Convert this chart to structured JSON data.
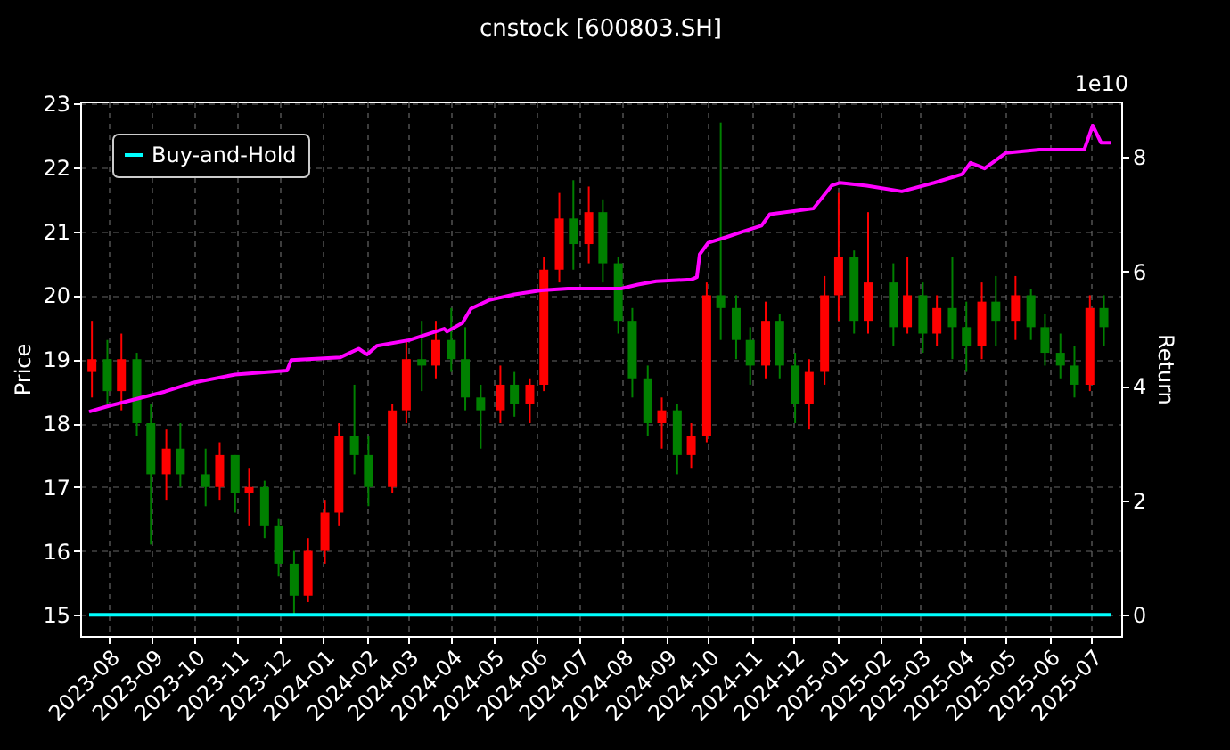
{
  "chart_data": {
    "type": "candlestick",
    "title": "cnstock [600803.SH]",
    "ylabel": "Price",
    "y2label": "Return",
    "annotations": [
      "1e10"
    ],
    "x": [
      "2023-07-20",
      "2023-07-31",
      "2023-08-10",
      "2023-08-21",
      "2023-08-31",
      "2023-09-11",
      "2023-09-21",
      "2023-10-09",
      "2023-10-19",
      "2023-10-30",
      "2023-11-09",
      "2023-11-20",
      "2023-11-30",
      "2023-12-11",
      "2023-12-21",
      "2024-01-02",
      "2024-01-12",
      "2024-01-23",
      "2024-02-02",
      "2024-02-19",
      "2024-02-29",
      "2024-03-11",
      "2024-03-21",
      "2024-04-01",
      "2024-04-11",
      "2024-04-22",
      "2024-05-06",
      "2024-05-16",
      "2024-05-27",
      "2024-06-06",
      "2024-06-17",
      "2024-06-27",
      "2024-07-08",
      "2024-07-18",
      "2024-07-29",
      "2024-08-08",
      "2024-08-19",
      "2024-08-29",
      "2024-09-09",
      "2024-09-19",
      "2024-09-30",
      "2024-10-10",
      "2024-10-21",
      "2024-10-31",
      "2024-11-11",
      "2024-11-21",
      "2024-12-02",
      "2024-12-12",
      "2024-12-23",
      "2025-01-02",
      "2025-01-13",
      "2025-01-23",
      "2025-02-10",
      "2025-02-20",
      "2025-03-03",
      "2025-03-13",
      "2025-03-24",
      "2025-04-03",
      "2025-04-14",
      "2025-04-24",
      "2025-05-08",
      "2025-05-19",
      "2025-05-29",
      "2025-06-09",
      "2025-06-19",
      "2025-06-30",
      "2025-07-10"
    ],
    "ohlc": [
      [
        18.8,
        19.6,
        18.4,
        19.0
      ],
      [
        19.0,
        19.3,
        18.3,
        18.5
      ],
      [
        18.5,
        19.4,
        18.2,
        19.0
      ],
      [
        19.0,
        19.1,
        17.8,
        18.0
      ],
      [
        18.0,
        18.3,
        16.1,
        17.2
      ],
      [
        17.2,
        17.9,
        16.8,
        17.6
      ],
      [
        17.6,
        18.0,
        17.0,
        17.2
      ],
      [
        17.2,
        17.6,
        16.7,
        17.0
      ],
      [
        17.0,
        17.7,
        16.8,
        17.5
      ],
      [
        17.5,
        17.5,
        16.6,
        16.9
      ],
      [
        16.9,
        17.3,
        16.4,
        17.0
      ],
      [
        17.0,
        17.1,
        16.2,
        16.4
      ],
      [
        16.4,
        16.5,
        15.6,
        15.8
      ],
      [
        15.8,
        16.0,
        15.0,
        15.3
      ],
      [
        15.3,
        16.2,
        15.2,
        16.0
      ],
      [
        16.0,
        16.8,
        15.8,
        16.6
      ],
      [
        16.6,
        18.0,
        16.4,
        17.8
      ],
      [
        17.8,
        18.6,
        17.2,
        17.5
      ],
      [
        17.5,
        17.8,
        16.7,
        17.0
      ],
      [
        17.0,
        18.3,
        16.9,
        18.2
      ],
      [
        18.2,
        19.3,
        18.0,
        19.0
      ],
      [
        19.0,
        19.6,
        18.5,
        18.9
      ],
      [
        18.9,
        19.6,
        18.7,
        19.3
      ],
      [
        19.3,
        19.8,
        18.8,
        19.0
      ],
      [
        19.0,
        19.5,
        18.2,
        18.4
      ],
      [
        18.4,
        18.6,
        17.6,
        18.2
      ],
      [
        18.2,
        18.9,
        18.0,
        18.6
      ],
      [
        18.6,
        18.8,
        18.1,
        18.3
      ],
      [
        18.3,
        18.7,
        18.0,
        18.6
      ],
      [
        18.6,
        20.6,
        18.5,
        20.4
      ],
      [
        20.4,
        21.6,
        20.2,
        21.2
      ],
      [
        21.2,
        21.8,
        20.4,
        20.8
      ],
      [
        20.8,
        21.7,
        20.5,
        21.3
      ],
      [
        21.3,
        21.5,
        20.2,
        20.5
      ],
      [
        20.5,
        20.6,
        19.4,
        19.6
      ],
      [
        19.6,
        19.8,
        18.4,
        18.7
      ],
      [
        18.7,
        18.9,
        17.8,
        18.0
      ],
      [
        18.0,
        18.4,
        17.6,
        18.2
      ],
      [
        18.2,
        18.3,
        17.2,
        17.5
      ],
      [
        17.5,
        18.0,
        17.3,
        17.8
      ],
      [
        17.8,
        20.2,
        17.7,
        20.0
      ],
      [
        20.0,
        22.7,
        19.3,
        19.8
      ],
      [
        19.8,
        20.0,
        19.0,
        19.3
      ],
      [
        19.3,
        19.5,
        18.6,
        18.9
      ],
      [
        18.9,
        19.9,
        18.7,
        19.6
      ],
      [
        19.6,
        19.7,
        18.7,
        18.9
      ],
      [
        18.9,
        19.1,
        18.0,
        18.3
      ],
      [
        18.3,
        19.0,
        17.9,
        18.8
      ],
      [
        18.8,
        20.3,
        18.6,
        20.0
      ],
      [
        20.0,
        21.6,
        19.6,
        20.6
      ],
      [
        20.6,
        20.7,
        19.4,
        19.6
      ],
      [
        19.6,
        21.3,
        19.4,
        20.2
      ],
      [
        20.2,
        20.5,
        19.2,
        19.5
      ],
      [
        19.5,
        20.6,
        19.4,
        20.0
      ],
      [
        20.0,
        20.2,
        19.1,
        19.4
      ],
      [
        19.4,
        20.0,
        19.2,
        19.8
      ],
      [
        19.8,
        20.6,
        19.0,
        19.5
      ],
      [
        19.5,
        19.9,
        18.8,
        19.2
      ],
      [
        19.2,
        20.2,
        19.0,
        19.9
      ],
      [
        19.9,
        20.3,
        19.2,
        19.6
      ],
      [
        19.6,
        20.3,
        19.3,
        20.0
      ],
      [
        20.0,
        20.1,
        19.3,
        19.5
      ],
      [
        19.5,
        19.7,
        18.9,
        19.1
      ],
      [
        19.1,
        19.4,
        18.7,
        18.9
      ],
      [
        18.9,
        19.2,
        18.4,
        18.6
      ],
      [
        18.6,
        20.0,
        18.5,
        19.8
      ],
      [
        19.8,
        20.0,
        19.2,
        19.5
      ]
    ],
    "colors": [
      "#ff0000",
      "#008000",
      "#ff0000",
      "#008000",
      "#008000",
      "#ff0000",
      "#008000",
      "#008000",
      "#ff0000",
      "#008000",
      "#ff0000",
      "#008000",
      "#008000",
      "#008000",
      "#ff0000",
      "#ff0000",
      "#ff0000",
      "#008000",
      "#008000",
      "#ff0000",
      "#ff0000",
      "#008000",
      "#ff0000",
      "#008000",
      "#008000",
      "#008000",
      "#ff0000",
      "#008000",
      "#ff0000",
      "#ff0000",
      "#ff0000",
      "#008000",
      "#ff0000",
      "#008000",
      "#008000",
      "#008000",
      "#008000",
      "#ff0000",
      "#008000",
      "#ff0000",
      "#ff0000",
      "#008000",
      "#008000",
      "#008000",
      "#ff0000",
      "#008000",
      "#008000",
      "#ff0000",
      "#ff0000",
      "#ff0000",
      "#008000",
      "#ff0000",
      "#008000",
      "#ff0000",
      "#008000",
      "#ff0000",
      "#008000",
      "#008000",
      "#ff0000",
      "#008000",
      "#ff0000",
      "#008000",
      "#008000",
      "#008000",
      "#008000",
      "#ff0000",
      "#008000"
    ],
    "series": [
      {
        "type": "line",
        "axis": "y2",
        "color": "#ff00ff",
        "x": [
          "2023-07-18",
          "2023-08-01",
          "2023-09-10",
          "2023-09-29",
          "2023-10-30",
          "2023-12-06",
          "2023-12-09",
          "2024-01-13",
          "2024-01-26",
          "2024-02-01",
          "2024-02-08",
          "2024-03-02",
          "2024-03-27",
          "2024-03-29",
          "2024-04-09",
          "2024-04-15",
          "2024-04-28",
          "2024-05-16",
          "2024-06-04",
          "2024-06-23",
          "2024-07-31",
          "2024-08-12",
          "2024-08-25",
          "2024-09-19",
          "2024-09-23",
          "2024-09-25",
          "2024-10-01",
          "2024-10-14",
          "2024-10-26",
          "2024-11-08",
          "2024-11-14",
          "2024-12-15",
          "2024-12-28",
          "2025-01-03",
          "2025-01-22",
          "2025-02-16",
          "2025-03-11",
          "2025-03-31",
          "2025-04-06",
          "2025-04-16",
          "2025-05-01",
          "2025-05-25",
          "2025-06-26",
          "2025-07-02",
          "2025-07-08",
          "2025-07-15"
        ],
        "values": [
          3.55,
          3.65,
          3.9,
          4.05,
          4.2,
          4.27,
          4.45,
          4.5,
          4.65,
          4.55,
          4.7,
          4.8,
          5.0,
          4.95,
          5.1,
          5.35,
          5.5,
          5.6,
          5.67,
          5.7,
          5.7,
          5.77,
          5.83,
          5.86,
          5.9,
          6.3,
          6.5,
          6.6,
          6.7,
          6.8,
          7.0,
          7.1,
          7.5,
          7.55,
          7.5,
          7.4,
          7.55,
          7.7,
          7.9,
          7.8,
          8.07,
          8.13,
          8.13,
          8.55,
          8.25,
          8.25
        ]
      },
      {
        "name": "Buy-and-Hold",
        "type": "line",
        "axis": "y2",
        "color": "#00ffff",
        "x": [
          "2023-07-18",
          "2025-07-15"
        ],
        "values": [
          0,
          0
        ]
      }
    ],
    "xlim": [
      "2023-07-18",
      "2025-07-16"
    ],
    "ylim": [
      14.67,
      23.03
    ],
    "y2lim": [
      -0.37,
      8.97
    ],
    "xticks": [
      "2023-08",
      "2023-09",
      "2023-10",
      "2023-11",
      "2023-12",
      "2024-01",
      "2024-02",
      "2024-03",
      "2024-04",
      "2024-05",
      "2024-06",
      "2024-07",
      "2024-08",
      "2024-09",
      "2024-10",
      "2024-11",
      "2024-12",
      "2025-01",
      "2025-02",
      "2025-03",
      "2025-04",
      "2025-05",
      "2025-06",
      "2025-07"
    ],
    "yticks": [
      15,
      16,
      17,
      18,
      19,
      20,
      21,
      22,
      23
    ],
    "y2ticks": [
      0,
      2,
      4,
      6,
      8
    ],
    "grid": true,
    "legend": "top left"
  }
}
